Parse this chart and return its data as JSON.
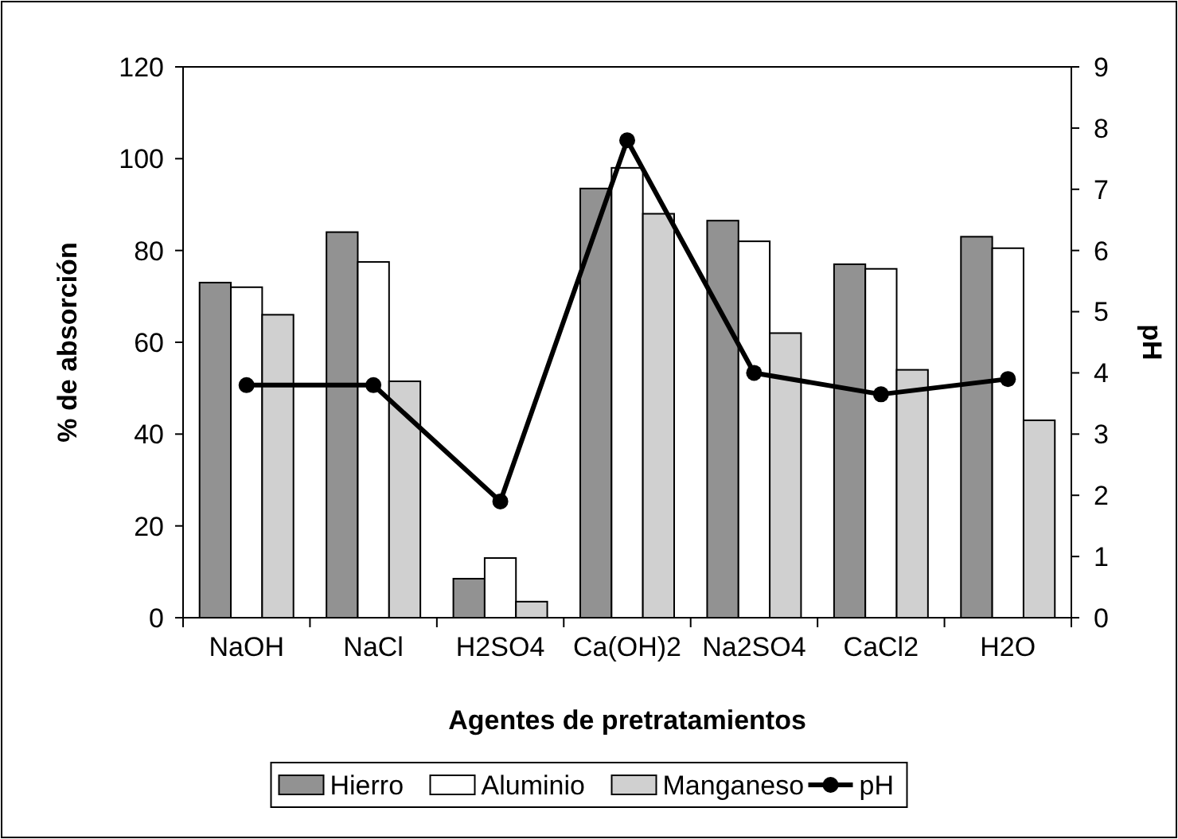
{
  "chart_data": {
    "type": "bar",
    "xlabel": "Agentes de pretratamientos",
    "ylabel": "% de absorción",
    "y2label": "pH",
    "categories": [
      "NaOH",
      "NaCl",
      "H2SO4",
      "Ca(OH)2",
      "Na2SO4",
      "CaCl2",
      "H2O"
    ],
    "series": [
      {
        "name": "Hierro",
        "color": "#929292",
        "values": [
          73,
          84,
          8.5,
          93.5,
          86.5,
          77,
          83
        ]
      },
      {
        "name": "Aluminio",
        "color": "#ffffff",
        "values": [
          72,
          77.5,
          13,
          98,
          82,
          76,
          80.5
        ]
      },
      {
        "name": "Manganeso",
        "color": "#d0d0d0",
        "values": [
          66,
          51.5,
          3.5,
          88,
          62,
          54,
          43
        ]
      },
      {
        "name": "pH",
        "type": "line",
        "axis": "y2",
        "color": "#000000",
        "values": [
          3.8,
          3.8,
          1.9,
          7.8,
          4.0,
          3.65,
          3.9
        ]
      }
    ],
    "ylim": [
      0,
      120
    ],
    "yticks": [
      0,
      20,
      40,
      60,
      80,
      100,
      120
    ],
    "y2lim": [
      0,
      9
    ],
    "y2ticks": [
      0,
      1,
      2,
      3,
      4,
      5,
      6,
      7,
      8,
      9
    ],
    "legend": "bottom",
    "marker": "circle",
    "grid": false
  }
}
